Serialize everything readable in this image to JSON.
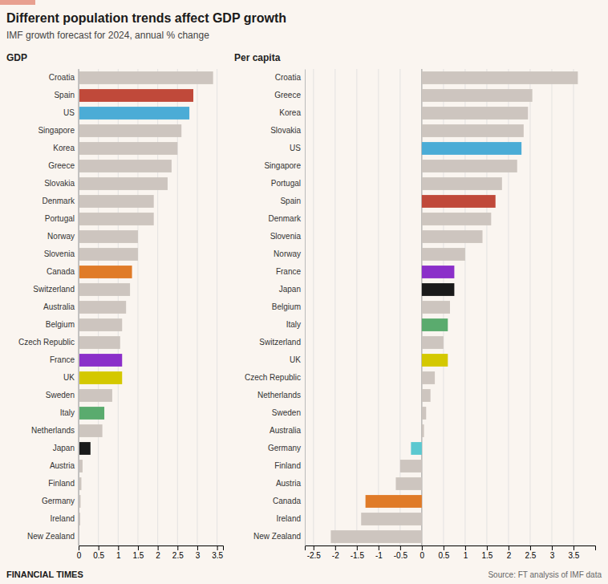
{
  "title": "Different population trends affect GDP growth",
  "subtitle": "IMF growth forecast for 2024, annual % change",
  "annotations": [
    "FINANCIAL TIMES",
    "Source: FT analysis of IMF data"
  ],
  "chart_data": [
    {
      "type": "bar",
      "orientation": "horizontal",
      "title": "GDP",
      "categories": [
        "Croatia",
        "Spain",
        "US",
        "Singapore",
        "Korea",
        "Greece",
        "Slovakia",
        "Denmark",
        "Portugal",
        "Norway",
        "Slovenia",
        "Canada",
        "Switzerland",
        "Australia",
        "Belgium",
        "Czech Republic",
        "France",
        "UK",
        "Sweden",
        "Italy",
        "Netherlands",
        "Japan",
        "Austria",
        "Finland",
        "Germany",
        "Ireland",
        "New Zealand"
      ],
      "values": [
        3.4,
        2.9,
        2.8,
        2.6,
        2.5,
        2.35,
        2.25,
        1.9,
        1.9,
        1.5,
        1.5,
        1.35,
        1.3,
        1.2,
        1.1,
        1.05,
        1.1,
        1.1,
        0.85,
        0.65,
        0.6,
        0.3,
        0.1,
        0.07,
        0.05,
        0.04,
        0.02
      ],
      "colors": [
        "#cdc5bf",
        "#c0493a",
        "#4bacd6",
        "#cdc5bf",
        "#cdc5bf",
        "#cdc5bf",
        "#cdc5bf",
        "#cdc5bf",
        "#cdc5bf",
        "#cdc5bf",
        "#cdc5bf",
        "#e07b28",
        "#cdc5bf",
        "#cdc5bf",
        "#cdc5bf",
        "#cdc5bf",
        "#8b2fc9",
        "#d4c800",
        "#cdc5bf",
        "#5aab6e",
        "#cdc5bf",
        "#1a1a1a",
        "#cdc5bf",
        "#cdc5bf",
        "#cdc5bf",
        "#cdc5bf",
        "#cdc5bf"
      ],
      "xlim": [
        0,
        3.65
      ],
      "xticks": [
        0,
        0.5,
        1,
        1.5,
        2,
        2.5,
        3,
        3.5
      ],
      "grid": true
    },
    {
      "type": "bar",
      "orientation": "horizontal",
      "title": "Per capita",
      "categories": [
        "Croatia",
        "Greece",
        "Korea",
        "Slovakia",
        "US",
        "Singapore",
        "Portugal",
        "Spain",
        "Denmark",
        "Slovenia",
        "Norway",
        "France",
        "Japan",
        "Belgium",
        "Italy",
        "Switzerland",
        "UK",
        "Czech Republic",
        "Netherlands",
        "Sweden",
        "Australia",
        "Germany",
        "Finland",
        "Austria",
        "Canada",
        "Ireland",
        "New Zealand"
      ],
      "values": [
        3.6,
        2.55,
        2.45,
        2.35,
        2.3,
        2.2,
        1.85,
        1.7,
        1.6,
        1.4,
        1.0,
        0.75,
        0.75,
        0.65,
        0.6,
        0.5,
        0.6,
        0.3,
        0.2,
        0.1,
        0.05,
        -0.25,
        -0.5,
        -0.6,
        -1.3,
        -1.4,
        -2.1
      ],
      "colors": [
        "#cdc5bf",
        "#cdc5bf",
        "#cdc5bf",
        "#cdc5bf",
        "#4bacd6",
        "#cdc5bf",
        "#cdc5bf",
        "#c0493a",
        "#cdc5bf",
        "#cdc5bf",
        "#cdc5bf",
        "#8b2fc9",
        "#1a1a1a",
        "#cdc5bf",
        "#5aab6e",
        "#cdc5bf",
        "#d4c800",
        "#cdc5bf",
        "#cdc5bf",
        "#cdc5bf",
        "#cdc5bf",
        "#5bc8d0",
        "#cdc5bf",
        "#cdc5bf",
        "#e07b28",
        "#cdc5bf",
        "#cdc5bf"
      ],
      "xlim": [
        -2.7,
        4.0
      ],
      "xticks": [
        -2.5,
        -2,
        -1.5,
        -1,
        -0.5,
        0,
        0.5,
        1,
        1.5,
        2,
        2.5,
        3,
        3.5
      ],
      "grid": true
    }
  ]
}
